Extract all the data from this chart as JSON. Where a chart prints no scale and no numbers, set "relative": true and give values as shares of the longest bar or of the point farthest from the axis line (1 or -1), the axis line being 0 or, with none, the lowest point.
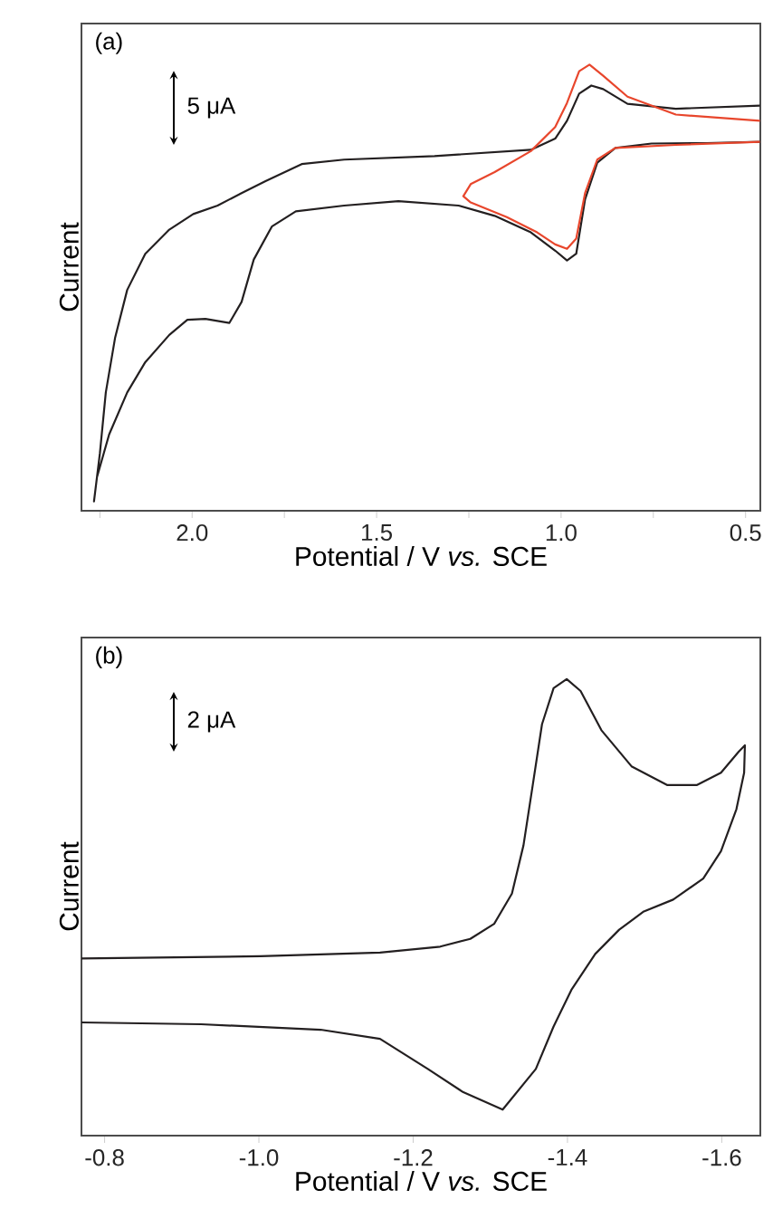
{
  "chart_data": [
    {
      "type": "line",
      "relative": true,
      "xlabel": "Potential / V *vs.* SCE",
      "ylabel": "Current",
      "annotations": [
        "(a)",
        "5 μA"
      ],
      "xlim": [
        2.3,
        0.46
      ],
      "xticks": [
        {
          "value": 2.25,
          "label": null
        },
        {
          "value": 2.0,
          "label": "2.0"
        },
        {
          "value": 1.75,
          "label": null
        },
        {
          "value": 1.5,
          "label": "1.5"
        },
        {
          "value": 1.25,
          "label": null
        },
        {
          "value": 1.0,
          "label": "1.0"
        },
        {
          "value": 0.75,
          "label": null
        },
        {
          "value": 0.5,
          "label": "0.5"
        }
      ],
      "series": [
        {
          "color": "#231f20",
          "x": [
            0.461,
            0.689,
            0.82,
            0.886,
            0.918,
            0.951,
            0.984,
            1.016,
            1.082,
            1.343,
            1.588,
            1.703,
            1.801,
            1.866,
            1.931,
            1.997,
            2.062,
            2.127,
            2.176,
            2.209,
            2.234,
            2.25,
            2.266,
            2.258,
            2.225,
            2.176,
            2.127,
            2.062,
            2.013,
            1.964,
            1.899,
            1.866,
            1.833,
            1.784,
            1.719,
            1.588,
            1.441,
            1.278,
            1.18,
            1.082,
            1.016,
            0.984,
            0.959,
            0.935,
            0.902,
            0.853,
            0.755,
            0.608,
            0.461
          ],
          "values": [
            0.908,
            0.901,
            0.912,
            0.945,
            0.953,
            0.935,
            0.874,
            0.834,
            0.809,
            0.795,
            0.787,
            0.777,
            0.739,
            0.712,
            0.684,
            0.665,
            0.63,
            0.576,
            0.495,
            0.387,
            0.265,
            0.129,
            0.021,
            0.075,
            0.171,
            0.265,
            0.333,
            0.394,
            0.428,
            0.43,
            0.421,
            0.468,
            0.563,
            0.637,
            0.671,
            0.684,
            0.694,
            0.684,
            0.661,
            0.624,
            0.583,
            0.561,
            0.576,
            0.698,
            0.78,
            0.813,
            0.823,
            0.824,
            0.827
          ]
        },
        {
          "color": "#e8462c",
          "x": [
            0.461,
            0.689,
            0.82,
            0.886,
            0.923,
            0.951,
            0.984,
            1.016,
            1.082,
            1.18,
            1.245,
            1.265,
            1.245,
            1.147,
            1.065,
            1.016,
            0.984,
            0.959,
            0.935,
            0.902,
            0.853,
            0.689,
            0.461
          ],
          "values": [
            0.874,
            0.888,
            0.928,
            0.975,
            1.0,
            0.985,
            0.914,
            0.86,
            0.806,
            0.759,
            0.732,
            0.705,
            0.691,
            0.658,
            0.624,
            0.597,
            0.587,
            0.61,
            0.712,
            0.787,
            0.813,
            0.82,
            0.827
          ]
        }
      ]
    },
    {
      "type": "line",
      "relative": true,
      "xlabel": "Potential / V *vs.* SCE",
      "ylabel": "Current",
      "annotations": [
        "(b)",
        "2 μA"
      ],
      "xlim": [
        -0.77,
        -1.65
      ],
      "xticks": [
        {
          "value": -0.8,
          "label": "-0.8"
        },
        {
          "value": -1.0,
          "label": "-1.0"
        },
        {
          "value": -1.2,
          "label": "-1.2"
        },
        {
          "value": -1.4,
          "label": "-1.4"
        },
        {
          "value": -1.6,
          "label": "-1.6"
        }
      ],
      "series": [
        {
          "color": "#231f20",
          "x": [
            -0.77,
            -1.002,
            -1.157,
            -1.235,
            -1.274,
            -1.305,
            -1.328,
            -1.343,
            -1.355,
            -1.367,
            -1.382,
            -1.399,
            -1.417,
            -1.444,
            -1.483,
            -1.529,
            -1.568,
            -1.599,
            -1.622,
            -1.63,
            -1.629,
            -1.619,
            -1.599,
            -1.576,
            -1.537,
            -1.499,
            -1.467,
            -1.436,
            -1.405,
            -1.382,
            -1.359,
            -1.316,
            -1.265,
            -1.219,
            -1.157,
            -1.08,
            -0.925,
            -0.77
          ],
          "values": [
            0.388,
            0.393,
            0.401,
            0.414,
            0.431,
            0.464,
            0.53,
            0.636,
            0.768,
            0.901,
            0.98,
            1.0,
            0.974,
            0.888,
            0.809,
            0.768,
            0.768,
            0.795,
            0.841,
            0.855,
            0.795,
            0.715,
            0.623,
            0.563,
            0.517,
            0.491,
            0.451,
            0.398,
            0.319,
            0.239,
            0.146,
            0.057,
            0.095,
            0.146,
            0.212,
            0.232,
            0.244,
            0.248
          ]
        }
      ]
    }
  ]
}
